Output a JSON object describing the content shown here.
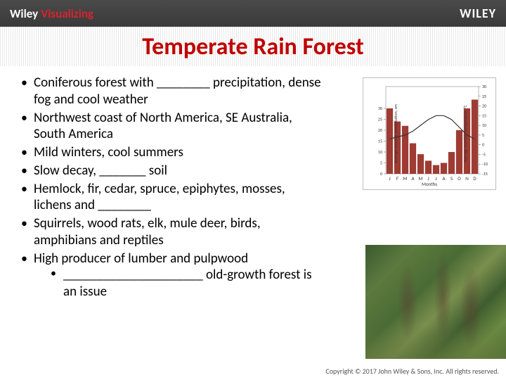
{
  "header": {
    "brand_prefix": "Wiley ",
    "brand_suffix": "Visualizing",
    "publisher": "WILEY"
  },
  "title": "Temperate Rain Forest",
  "bullets": [
    "Coniferous forest with ________ precipitation, dense fog and cool weather",
    "Northwest coast of North America, SE Australia, South America",
    "Mild winters, cool summers",
    "Slow decay, _______ soil",
    "Hemlock, fir, cedar, spruce, epiphytes, mosses, lichens and ________",
    "Squirrels, wood rats, elk, mule deer, birds, amphibians and reptiles",
    "High producer of lumber and pulpwood"
  ],
  "sub_bullet": "_____________________ old-growth forest is an issue",
  "copyright": "Copyright © 2017 John Wiley & Sons, Inc. All rights reserved.",
  "chart": {
    "type": "climograph",
    "months": [
      "J",
      "F",
      "M",
      "A",
      "M",
      "J",
      "J",
      "A",
      "S",
      "O",
      "N",
      "D"
    ],
    "precip_cm": [
      30,
      24,
      22,
      14,
      9,
      6,
      4,
      5,
      10,
      20,
      30,
      34
    ],
    "temp_c": [
      3,
      4,
      5,
      7,
      10,
      13,
      15,
      15,
      13,
      9,
      5,
      3
    ],
    "precip_ylim": [
      0,
      40
    ],
    "precip_ticks": [
      0,
      5,
      10,
      15,
      20,
      25,
      30
    ],
    "temp_ylim": [
      -15,
      30
    ],
    "temp_ticks": [
      -15,
      -10,
      -5,
      0,
      5,
      10,
      15,
      20,
      25,
      30
    ],
    "bar_color": "#9e3b33",
    "line_color": "#333333",
    "grid_color": "#c8c8c8",
    "background_color": "#ffffff",
    "xlabel": "Months",
    "ylabel_left": "Average monthly precipitation, cm",
    "ylabel_right": "Average monthly temperature, °C",
    "tick_fontsize": 6,
    "label_fontsize": 6
  }
}
